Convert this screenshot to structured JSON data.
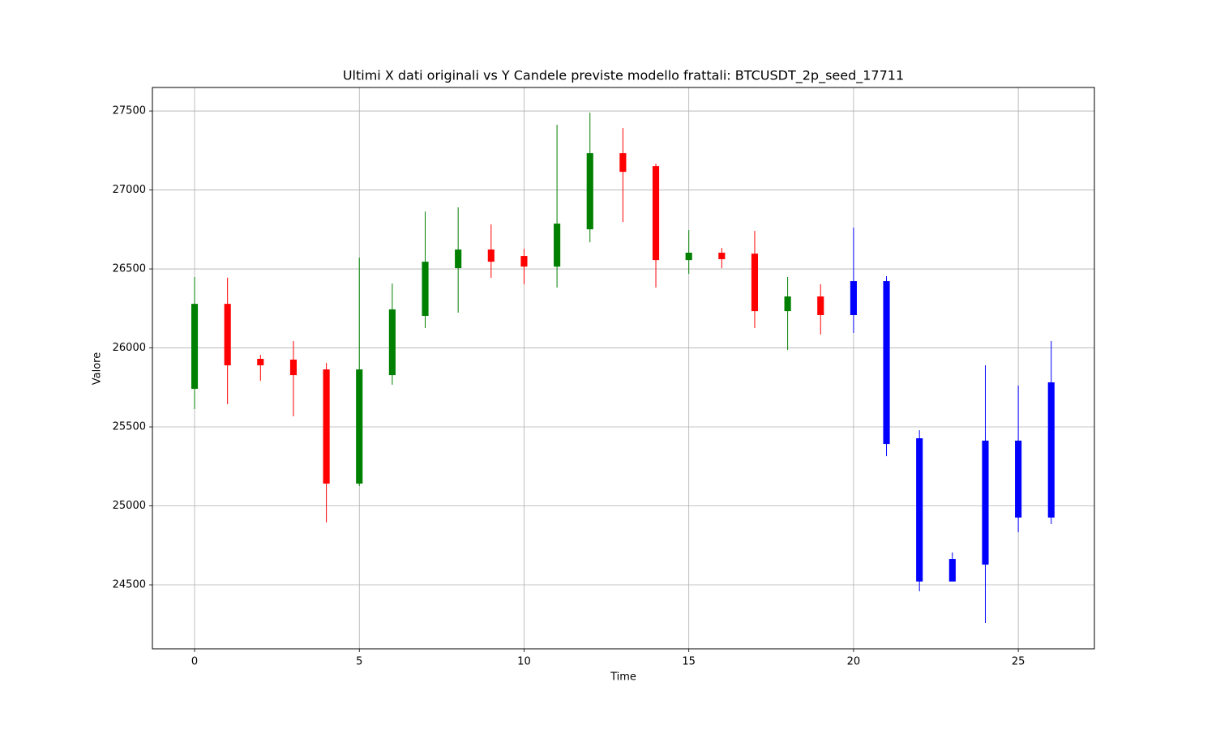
{
  "chart_data": {
    "type": "candlestick",
    "title": "Ultimi X dati originali vs Y Candele previste modello frattali: BTCUSDT_2p_seed_17711",
    "x_label": "Time",
    "y_label": "Valore",
    "x": [
      0,
      1,
      2,
      3,
      4,
      5,
      6,
      7,
      8,
      9,
      10,
      11,
      12,
      13,
      14,
      15,
      16,
      17,
      18,
      19,
      20,
      21,
      22,
      23,
      24,
      25,
      26
    ],
    "open": [
      25741,
      26279,
      25931,
      25926,
      25864,
      25141,
      25828,
      26203,
      26505,
      26623,
      26582,
      26515,
      26751,
      27233,
      27151,
      26556,
      26603,
      26597,
      26233,
      26326,
      26208,
      26423,
      25428,
      24521,
      24628,
      25413,
      24926
    ],
    "high": [
      26449,
      26445,
      25956,
      26044,
      25905,
      26572,
      26408,
      26864,
      26890,
      26782,
      26628,
      27413,
      27490,
      27392,
      27167,
      26746,
      26633,
      26741,
      26449,
      26403,
      26762,
      26454,
      25479,
      24705,
      25890,
      25762,
      26044
    ],
    "low": [
      25613,
      25644,
      25792,
      25567,
      24895,
      25126,
      25767,
      26126,
      26223,
      26444,
      26403,
      26382,
      26669,
      26797,
      26382,
      26469,
      26505,
      26126,
      25987,
      26085,
      26095,
      25315,
      24459,
      24521,
      24259,
      24833,
      24885
    ],
    "close": [
      26279,
      25890,
      25890,
      25828,
      25141,
      25864,
      26244,
      26546,
      26623,
      26546,
      26515,
      26787,
      27233,
      27115,
      26556,
      26603,
      26562,
      26233,
      26326,
      26208,
      26423,
      25392,
      24521,
      24664,
      25413,
      24926,
      25782
    ],
    "colors": [
      "green",
      "red",
      "red",
      "red",
      "red",
      "green",
      "green",
      "green",
      "green",
      "red",
      "red",
      "green",
      "green",
      "red",
      "red",
      "green",
      "red",
      "red",
      "green",
      "red",
      "blue",
      "blue",
      "blue",
      "blue",
      "blue",
      "blue",
      "blue"
    ],
    "xlim": [
      -1.28,
      27.31
    ],
    "ylim": [
      24095,
      27649
    ],
    "xticks": [
      0,
      5,
      10,
      15,
      20,
      25
    ],
    "yticks": [
      24500,
      25000,
      25500,
      26000,
      26500,
      27000,
      27500
    ],
    "grid": true
  }
}
